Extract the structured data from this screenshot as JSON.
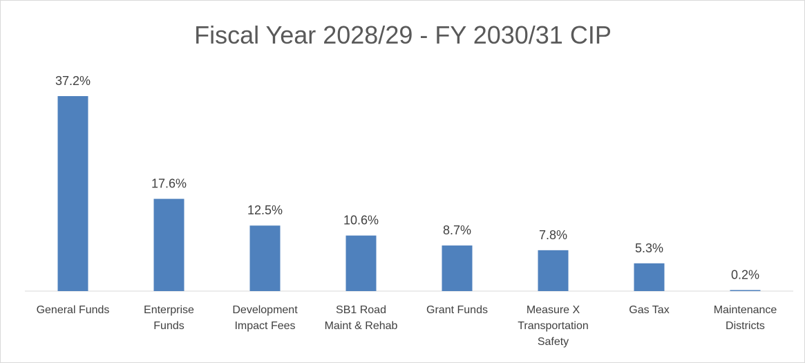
{
  "chart_data": {
    "type": "bar",
    "title": "Fiscal Year 2028/29 - FY 2030/31 CIP",
    "categories": [
      "General Funds",
      "Enterprise Funds",
      "Development Impact Fees",
      "SB1 Road Maint & Rehab",
      "Grant Funds",
      "Measure X Transportation Safety",
      "Gas Tax",
      "Maintenance Districts"
    ],
    "values": [
      37.2,
      17.6,
      12.5,
      10.6,
      8.7,
      7.8,
      5.3,
      0.2
    ],
    "value_labels": [
      "37.2%",
      "17.6%",
      "12.5%",
      "10.6%",
      "8.7%",
      "7.8%",
      "5.3%",
      "0.2%"
    ],
    "color": "#4f81bd"
  }
}
